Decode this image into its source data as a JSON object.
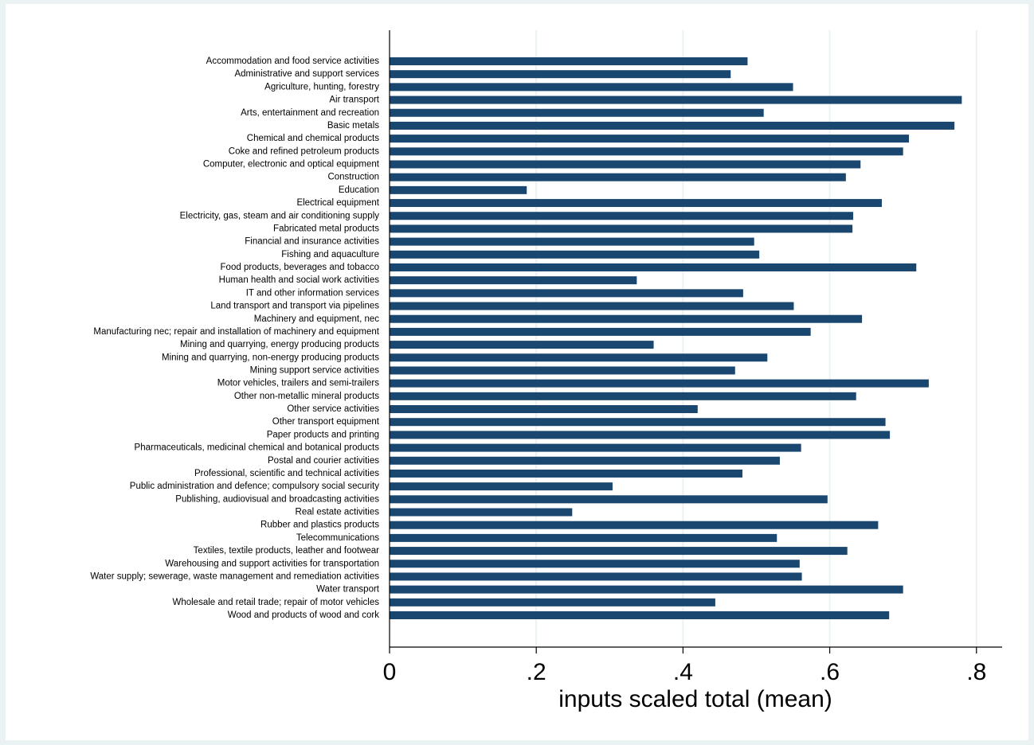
{
  "chart_data": {
    "type": "hbar",
    "x_label": "inputs scaled total (mean)",
    "categories": [
      "Accommodation and food service activities",
      "Administrative and support services",
      "Agriculture, hunting, forestry",
      "Air transport",
      "Arts, entertainment and recreation",
      "Basic metals",
      "Chemical and chemical products",
      "Coke and refined petroleum products",
      "Computer, electronic and optical equipment",
      "Construction",
      "Education",
      "Electrical equipment",
      "Electricity, gas, steam and air conditioning supply",
      "Fabricated metal products",
      "Financial and insurance activities",
      "Fishing and aquaculture",
      "Food products, beverages and tobacco",
      "Human health and social work activities",
      "IT and other information services",
      "Land transport and transport via pipelines",
      "Machinery and equipment, nec",
      "Manufacturing nec; repair and installation of machinery and equipment",
      "Mining and quarrying, energy producing products",
      "Mining and quarrying, non-energy producing products",
      "Mining support service activities",
      "Motor vehicles, trailers and semi-trailers",
      "Other non-metallic mineral products",
      "Other service activities",
      "Other transport equipment",
      "Paper products and printing",
      "Pharmaceuticals, medicinal chemical and botanical products",
      "Postal and courier activities",
      "Professional, scientific and technical activities",
      "Public administration and defence; compulsory social security",
      "Publishing, audiovisual and broadcasting activities",
      "Real estate activities",
      "Rubber and plastics products",
      "Telecommunications",
      "Textiles, textile products, leather and footwear",
      "Warehousing and support activities for transportation",
      "Water supply; sewerage, waste management and remediation activities",
      "Water transport",
      "Wholesale and retail trade; repair of motor vehicles",
      "Wood and products of wood and cork"
    ],
    "values": [
      0.488,
      0.465,
      0.55,
      0.78,
      0.51,
      0.77,
      0.708,
      0.7,
      0.642,
      0.622,
      0.187,
      0.671,
      0.632,
      0.631,
      0.497,
      0.504,
      0.718,
      0.337,
      0.482,
      0.551,
      0.644,
      0.574,
      0.36,
      0.515,
      0.471,
      0.735,
      0.636,
      0.42,
      0.676,
      0.682,
      0.561,
      0.532,
      0.481,
      0.304,
      0.597,
      0.249,
      0.666,
      0.528,
      0.624,
      0.559,
      0.562,
      0.7,
      0.444,
      0.681
    ],
    "color": "#1a476f",
    "xlim": [
      0,
      0.835
    ],
    "xticks": [
      0,
      {
        "value": 0.2,
        "label": ".2"
      },
      {
        "value": 0.4,
        "label": ".4"
      },
      {
        "value": 0.6,
        "label": ".6"
      },
      {
        "value": 0.8,
        "label": ".8"
      }
    ],
    "grid": true
  }
}
